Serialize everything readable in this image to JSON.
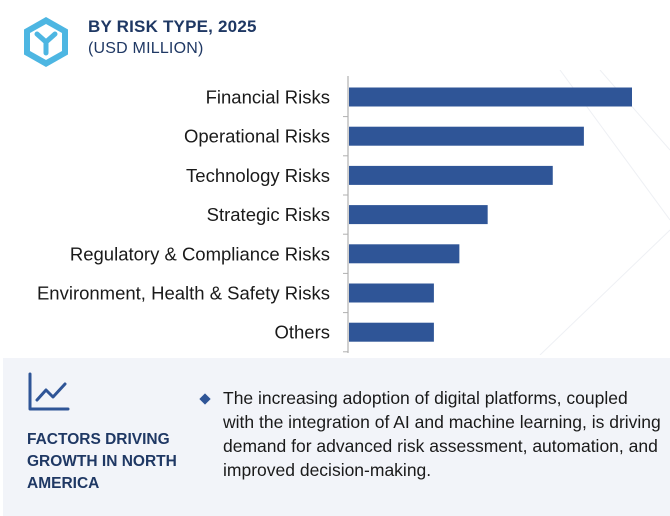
{
  "header": {
    "title": "BY RISK TYPE, 2025",
    "subtitle": "(USD MILLION)",
    "logo_icon": "hexagon-y-logo-icon"
  },
  "chart_data": {
    "type": "bar",
    "orientation": "horizontal",
    "categories": [
      "Financial Risks",
      "Operational Risks",
      "Technology Risks",
      "Strategic Risks",
      "Regulatory & Compliance Risks",
      "Environment, Health & Safety Risks",
      "Others"
    ],
    "values": [
      100,
      83,
      72,
      49,
      39,
      30,
      30
    ],
    "value_scale": "relative (no numeric axis shown)",
    "xlim": [
      0,
      100
    ],
    "bar_color": "#2f5597",
    "grid": false,
    "legend": "none"
  },
  "panel": {
    "icon": "trend-chart-icon",
    "factors_label": "FACTORS DRIVING GROWTH IN NORTH AMERICA",
    "bullet_text": "The increasing adoption of digital platforms, coupled with the integration of AI and machine learning, is driving demand for advanced risk assessment, automation, and improved decision-making.",
    "accent_color": "#2f5597"
  }
}
